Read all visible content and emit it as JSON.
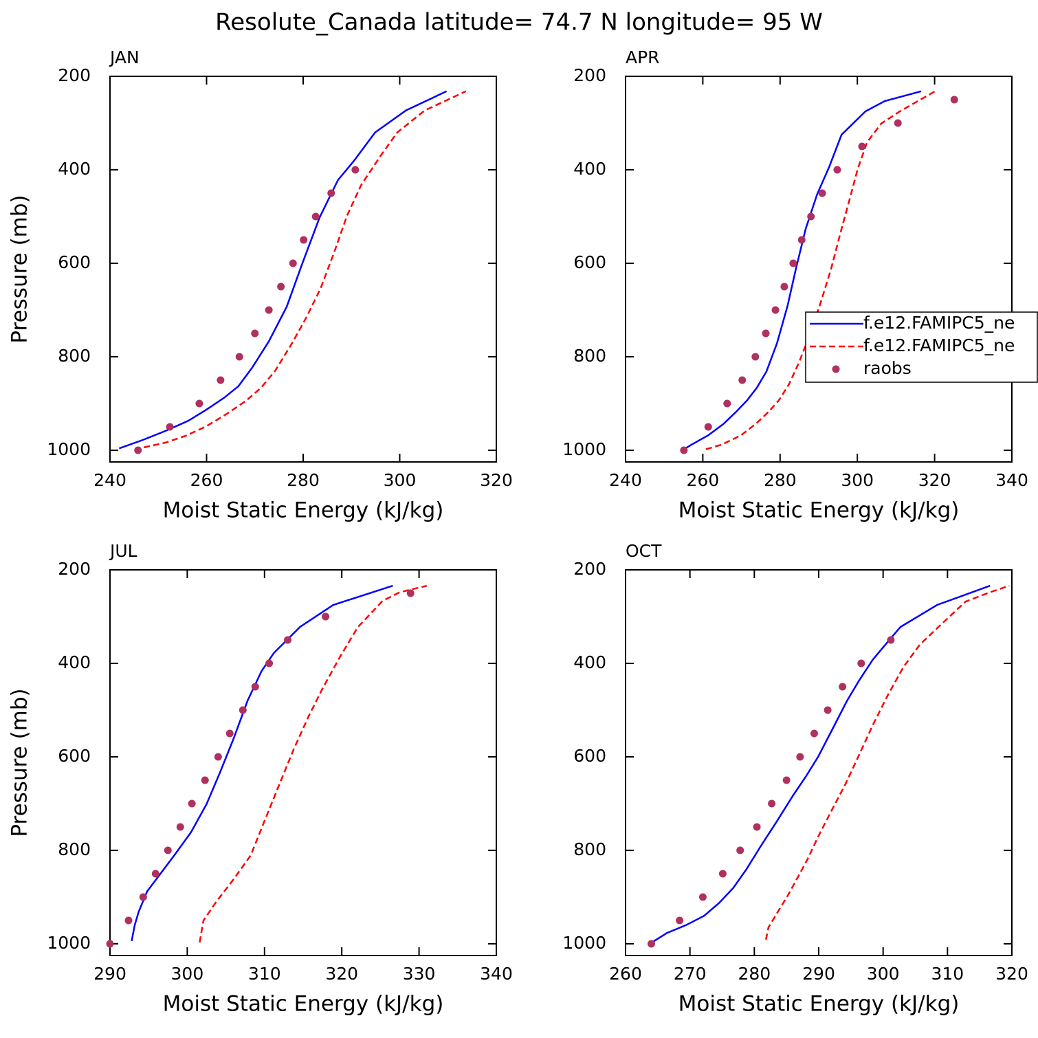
{
  "title": "Resolute_Canada  latitude= 74.7 N longitude= 95 W",
  "chart_data": [
    {
      "type": "line",
      "title": "JAN",
      "xlabel": "Moist Static Energy (kJ/kg)",
      "ylabel": "Pressure (mb)",
      "xlim": [
        240,
        320
      ],
      "ylim": [
        1025,
        200
      ],
      "xticks": [
        240,
        260,
        280,
        300,
        320
      ],
      "yticks": [
        200,
        400,
        600,
        800,
        1000
      ],
      "series": [
        {
          "name": "f.e12.FAMIPC5_ne",
          "color": "#0000ff",
          "dash": false,
          "x": [
            241.9,
            246.8,
            251.4,
            256.2,
            260.0,
            263.6,
            266.6,
            269.4,
            272.9,
            276.6,
            279.7,
            283.4,
            287.2,
            290.5,
            294.9,
            301.3,
            309.7
          ],
          "y": [
            996,
            978,
            959,
            937,
            913,
            888,
            863,
            824,
            767,
            693,
            604,
            502,
            422,
            381,
            320,
            273,
            232
          ]
        },
        {
          "name": "f.e12.FAMIPC5_ne",
          "color": "#ff0000",
          "dash": true,
          "x": [
            247.0,
            251.4,
            255.7,
            259.9,
            264.2,
            268.2,
            271.3,
            274.2,
            277.7,
            280.6,
            283.6,
            286.3,
            289.1,
            292.0,
            295.9,
            299.5,
            305.2,
            313.7
          ],
          "y": [
            994,
            984,
            969,
            949,
            922,
            894,
            866,
            830,
            771,
            717,
            654,
            580,
            498,
            433,
            372,
            320,
            273,
            232
          ]
        },
        {
          "name": "raobs",
          "color": "#b03060",
          "marker": "circle",
          "x": [
            245.8,
            252.4,
            258.5,
            262.9,
            266.8,
            270.0,
            272.9,
            275.4,
            277.9,
            280.1,
            282.6,
            285.8,
            290.8
          ],
          "y": [
            1000,
            950,
            900,
            850,
            800,
            750,
            700,
            650,
            600,
            550,
            500,
            450,
            400
          ]
        }
      ]
    },
    {
      "type": "line",
      "title": "APR",
      "xlabel": "Moist Static Energy (kJ/kg)",
      "legend": "right",
      "xlim": [
        240,
        340
      ],
      "ylim": [
        1025,
        200
      ],
      "xticks": [
        240,
        260,
        280,
        300,
        320,
        340
      ],
      "yticks": [
        200,
        400,
        600,
        800,
        1000
      ],
      "series": [
        {
          "name": "f.e12.FAMIPC5_ne",
          "color": "#0000ff",
          "dash": false,
          "x": [
            255.1,
            257.1,
            261.4,
            265.3,
            268.6,
            271.5,
            274.0,
            276.5,
            279.2,
            281.9,
            284.1,
            286.6,
            289.6,
            292.7,
            295.9,
            302.1,
            307.1,
            316.5
          ],
          "y": [
            998,
            988,
            968,
            944,
            918,
            893,
            866,
            831,
            771,
            692,
            612,
            527,
            452,
            394,
            325,
            275,
            253,
            232
          ]
        },
        {
          "name": "f.e12.FAMIPC5_ne",
          "color": "#ff0000",
          "dash": true,
          "x": [
            260.8,
            264.9,
            269.9,
            273.8,
            277.0,
            279.7,
            282.3,
            284.8,
            287.7,
            290.4,
            293.2,
            295.7,
            298.0,
            300.1,
            302.5,
            306.2,
            311.0,
            320.1
          ],
          "y": [
            998,
            988,
            968,
            943,
            918,
            893,
            859,
            814,
            753,
            687,
            612,
            533,
            463,
            398,
            341,
            301,
            275,
            232
          ]
        },
        {
          "name": "raobs",
          "color": "#b03060",
          "marker": "circle",
          "x": [
            255.1,
            261.4,
            266.3,
            270.2,
            273.6,
            276.3,
            278.8,
            281.1,
            283.4,
            285.6,
            288.0,
            290.9,
            294.8,
            301.2,
            310.5,
            325.1
          ],
          "y": [
            1000,
            950,
            900,
            850,
            800,
            750,
            700,
            650,
            600,
            550,
            500,
            450,
            400,
            350,
            300,
            250
          ]
        }
      ]
    },
    {
      "type": "line",
      "title": "JUL",
      "xlabel": "Moist Static Energy (kJ/kg)",
      "ylabel": "Pressure (mb)",
      "xlim": [
        290,
        340
      ],
      "ylim": [
        1025,
        200
      ],
      "xticks": [
        290,
        300,
        310,
        320,
        330,
        340
      ],
      "yticks": [
        200,
        400,
        600,
        800,
        1000
      ],
      "series": [
        {
          "name": "f.e12.FAMIPC5_ne",
          "color": "#0000ff",
          "dash": false,
          "x": [
            292.8,
            293.2,
            293.7,
            294.8,
            296.4,
            298.4,
            300.5,
            302.5,
            304.2,
            306.0,
            307.8,
            309.6,
            311.2,
            314.6,
            318.9,
            326.6
          ],
          "y": [
            994,
            960,
            932,
            888,
            853,
            809,
            761,
            701,
            635,
            561,
            480,
            417,
            378,
            322,
            275,
            234
          ]
        },
        {
          "name": "f.e12.FAMIPC5_ne",
          "color": "#ff0000",
          "dash": true,
          "x": [
            301.6,
            302.1,
            303.8,
            306.0,
            308.2,
            310.0,
            311.8,
            313.8,
            315.8,
            317.6,
            319.8,
            322.1,
            325.3,
            327.5,
            331.0
          ],
          "y": [
            997,
            950,
            909,
            862,
            811,
            737,
            664,
            583,
            510,
            451,
            385,
            322,
            266,
            248,
            234
          ]
        },
        {
          "name": "raobs",
          "color": "#b03060",
          "marker": "circle",
          "x": [
            290.0,
            292.4,
            294.3,
            295.9,
            297.5,
            299.1,
            300.6,
            302.3,
            304.0,
            305.5,
            307.2,
            308.8,
            310.6,
            313.0,
            317.9,
            328.9
          ],
          "y": [
            1000,
            950,
            900,
            850,
            800,
            750,
            700,
            650,
            600,
            550,
            500,
            450,
            400,
            350,
            300,
            250
          ]
        }
      ]
    },
    {
      "type": "line",
      "title": "OCT",
      "xlabel": "Moist Static Energy (kJ/kg)",
      "xlim": [
        260,
        320
      ],
      "ylim": [
        1025,
        200
      ],
      "xticks": [
        260,
        270,
        280,
        290,
        300,
        310,
        320
      ],
      "yticks": [
        200,
        400,
        600,
        800,
        1000
      ],
      "series": [
        {
          "name": "f.e12.FAMIPC5_ne",
          "color": "#0000ff",
          "dash": false,
          "x": [
            264.0,
            266.4,
            269.4,
            272.2,
            274.5,
            276.7,
            278.8,
            281.0,
            283.5,
            286.0,
            288.0,
            289.9,
            292.2,
            294.4,
            296.3,
            298.4,
            300.6,
            302.7,
            308.4,
            316.6
          ],
          "y": [
            998,
            977,
            960,
            940,
            913,
            881,
            840,
            791,
            738,
            683,
            642,
            600,
            539,
            480,
            436,
            392,
            356,
            322,
            275,
            234
          ]
        },
        {
          "name": "f.e12.FAMIPC5_ne",
          "color": "#ff0000",
          "dash": true,
          "x": [
            281.8,
            282.2,
            283.5,
            285.1,
            286.7,
            288.3,
            289.9,
            292.0,
            294.2,
            296.3,
            298.4,
            300.8,
            303.2,
            305.7,
            308.6,
            312.8,
            316.6,
            319.6
          ],
          "y": [
            991,
            965,
            935,
            899,
            859,
            818,
            771,
            715,
            657,
            595,
            532,
            466,
            407,
            360,
            322,
            268,
            248,
            234
          ]
        },
        {
          "name": "raobs",
          "color": "#b03060",
          "marker": "circle",
          "x": [
            264.0,
            268.4,
            272.0,
            275.1,
            277.8,
            280.4,
            282.7,
            285.0,
            287.1,
            289.3,
            291.4,
            293.7,
            296.6,
            301.2
          ],
          "y": [
            1000,
            950,
            900,
            850,
            800,
            750,
            700,
            650,
            600,
            550,
            500,
            450,
            400,
            350
          ]
        }
      ]
    }
  ]
}
